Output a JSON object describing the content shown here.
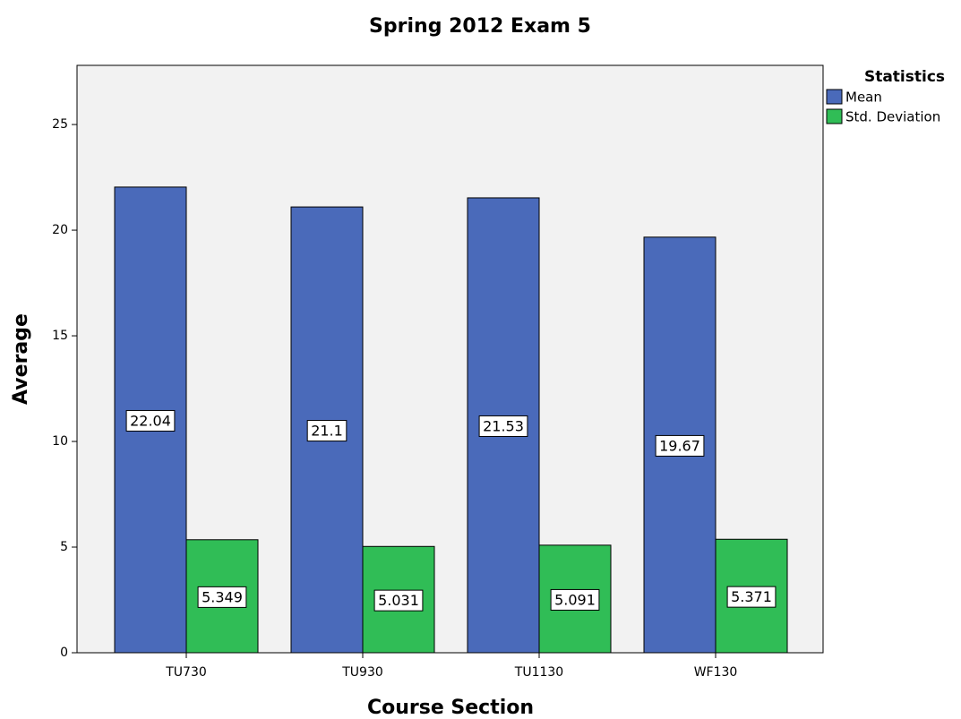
{
  "chart_data": {
    "type": "bar",
    "title": "Spring 2012 Exam 5",
    "x_label": "Course Section",
    "y_label": "Average",
    "categories": [
      "TU730",
      "TU930",
      "TU1130",
      "WF130"
    ],
    "series": [
      {
        "name": "Mean",
        "color": "#4a6aba",
        "values": [
          22.04,
          21.1,
          21.53,
          19.67
        ]
      },
      {
        "name": "Std. Deviation",
        "color": "#30bd56",
        "values": [
          5.349,
          5.031,
          5.091,
          5.371
        ]
      }
    ],
    "legend_title": "Statistics",
    "ylim": [
      0,
      27.8
    ],
    "yticks": [
      0,
      5,
      10,
      15,
      20,
      25
    ],
    "grid": false
  }
}
